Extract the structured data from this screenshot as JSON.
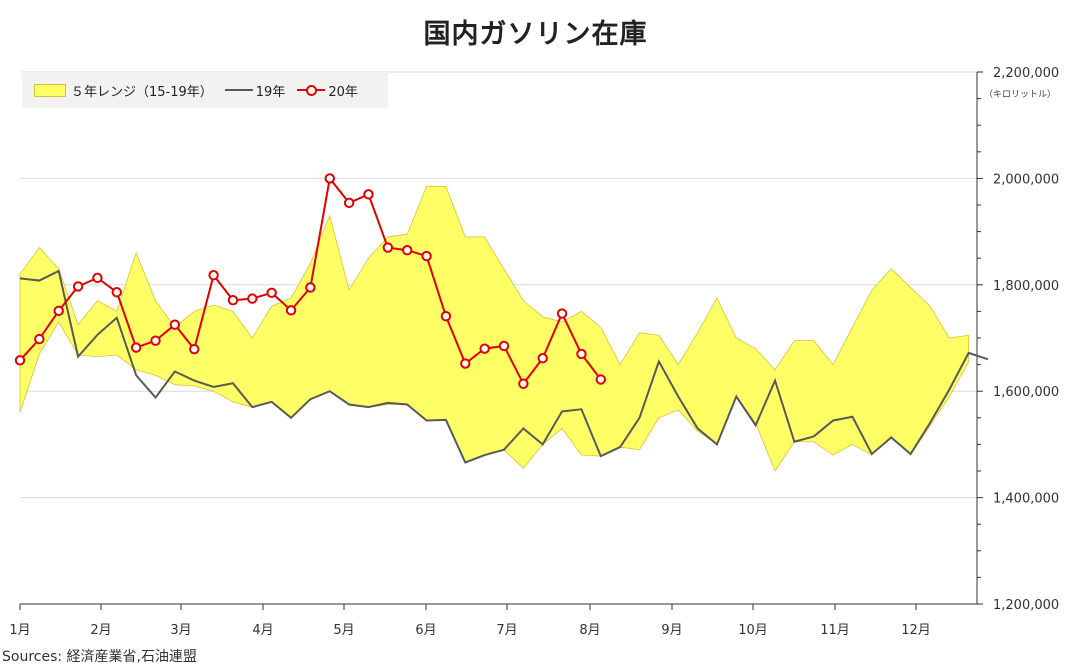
{
  "chart_data": {
    "type": "line",
    "title": "国内ガソリン在庫",
    "y_unit": "（キロリットル）",
    "source": "Sources: 経済産業省,石油連盟",
    "ylim": [
      1200000,
      2200000
    ],
    "y_ticks": [
      1200000,
      1400000,
      1600000,
      1800000,
      2000000,
      2200000
    ],
    "y_tick_labels": [
      "1,200,000",
      "1,400,000",
      "1,600,000",
      "1,800,000",
      "2,000,000",
      "2,200,000"
    ],
    "month_labels": [
      "1月",
      "2月",
      "3月",
      "4月",
      "5月",
      "6月",
      "7月",
      "8月",
      "9月",
      "10月",
      "11月",
      "12月"
    ],
    "x_unit": "week",
    "x_range": [
      1,
      50
    ],
    "grid": "horizontal",
    "legend_position": "top-left",
    "legend": {
      "band": "５年レンジ（15-19年）",
      "y19": "19年",
      "y20": "20年"
    },
    "colors": {
      "band_fill": "#ffff66",
      "band_stroke": "#d6c33a",
      "y19": "#595959",
      "y20": "#e00000"
    },
    "band": {
      "name": "５年レンジ（15-19年）",
      "weeks": [
        1,
        2,
        3,
        4,
        5,
        6,
        7,
        8,
        9,
        10,
        11,
        12,
        13,
        14,
        15,
        16,
        17,
        18,
        19,
        20,
        21,
        22,
        23,
        24,
        25,
        26,
        27,
        28,
        29,
        30,
        31,
        32,
        33,
        34,
        35,
        36,
        37,
        38,
        39,
        40,
        41,
        42,
        43,
        44,
        45,
        46,
        47,
        48,
        49,
        50
      ],
      "high": [
        1820000,
        1870000,
        1830000,
        1725000,
        1770000,
        1750000,
        1860000,
        1770000,
        1720000,
        1750000,
        1762000,
        1750000,
        1700000,
        1760000,
        1775000,
        1840000,
        1930000,
        1790000,
        1850000,
        1890000,
        1895000,
        1985000,
        1985000,
        1890000,
        1890000,
        1830000,
        1770000,
        1740000,
        1730000,
        1750000,
        1720000,
        1650000,
        1710000,
        1705000,
        1650000,
        1710000,
        1775000,
        1700000,
        1680000,
        1640000,
        1695000,
        1695000,
        1650000,
        1720000,
        1790000,
        1830000,
        1795000,
        1760000,
        1700000,
        1705000
      ],
      "low": [
        1560000,
        1670000,
        1730000,
        1668000,
        1665000,
        1668000,
        1640000,
        1630000,
        1612000,
        1610000,
        1600000,
        1580000,
        1570000,
        1580000,
        1550000,
        1585000,
        1600000,
        1575000,
        1570000,
        1575000,
        1575000,
        1545000,
        1545000,
        1465000,
        1480000,
        1490000,
        1455000,
        1500000,
        1530000,
        1480000,
        1478000,
        1495000,
        1490000,
        1550000,
        1565000,
        1525000,
        1500000,
        1590000,
        1540000,
        1450000,
        1505000,
        1505000,
        1480000,
        1500000,
        1480000,
        1515000,
        1480000,
        1535000,
        1590000,
        1655000
      ]
    },
    "series": [
      {
        "name": "19年",
        "weeks": [
          1,
          2,
          3,
          4,
          5,
          6,
          7,
          8,
          9,
          10,
          11,
          12,
          13,
          14,
          15,
          16,
          17,
          18,
          19,
          20,
          21,
          22,
          23,
          24,
          25,
          26,
          27,
          28,
          29,
          30,
          31,
          32,
          33,
          34,
          35,
          36,
          37,
          38,
          39,
          40,
          41,
          42,
          43,
          44,
          45,
          46,
          47,
          48,
          49,
          50,
          51
        ],
        "values": [
          1812000,
          1808000,
          1826000,
          1665000,
          1706000,
          1738000,
          1630000,
          1588000,
          1637000,
          1620000,
          1608000,
          1615000,
          1570000,
          1580000,
          1550000,
          1585000,
          1600000,
          1575000,
          1570000,
          1578000,
          1575000,
          1545000,
          1546000,
          1466000,
          1480000,
          1490000,
          1530000,
          1500000,
          1562000,
          1566000,
          1478000,
          1495000,
          1550000,
          1656000,
          1590000,
          1530000,
          1500000,
          1590000,
          1536000,
          1620000,
          1505000,
          1515000,
          1545000,
          1552000,
          1482000,
          1513000,
          1482000,
          1540000,
          1603000,
          1672000,
          1660000
        ]
      },
      {
        "name": "20年",
        "weeks": [
          1,
          2,
          3,
          4,
          5,
          6,
          7,
          8,
          9,
          10,
          11,
          12,
          13,
          14,
          15,
          16,
          17,
          18,
          19,
          20,
          21,
          22,
          23,
          24,
          25,
          26,
          27,
          28,
          29,
          30,
          31
        ],
        "values": [
          1658000,
          1698000,
          1751000,
          1797000,
          1813000,
          1786000,
          1682000,
          1695000,
          1725000,
          1679000,
          1818000,
          1771000,
          1774000,
          1785000,
          1752000,
          1795000,
          2000000,
          1954000,
          1970000,
          1870000,
          1865000,
          1854000,
          1741000,
          1652000,
          1680000,
          1685000,
          1614000,
          1662000,
          1746000,
          1670000,
          1622000
        ]
      }
    ]
  }
}
